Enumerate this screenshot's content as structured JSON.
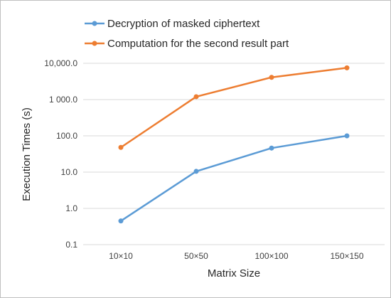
{
  "chart_data": {
    "type": "line",
    "title": "",
    "xlabel": "Matrix Size",
    "ylabel": "Execution Times (s)",
    "yscale": "log",
    "ylim": [
      0.1,
      10000
    ],
    "y_tick_values": [
      0.1,
      1,
      10,
      100,
      1000,
      10000
    ],
    "y_tick_labels": [
      "0.1",
      "1.0",
      "10.0",
      "100.0",
      "1 000.0",
      "10,000.0"
    ],
    "categories": [
      "10×10",
      "50×50",
      "100×100",
      "150×150"
    ],
    "grid": "horizontal",
    "legend_position": "top",
    "series": [
      {
        "name": "Decryption of masked ciphertext",
        "color": "#5b9bd5",
        "values": [
          0.45,
          10.5,
          46,
          100
        ]
      },
      {
        "name": "Computation for the second result part",
        "color": "#ed7d31",
        "values": [
          48,
          1200,
          4100,
          7500
        ]
      }
    ]
  }
}
